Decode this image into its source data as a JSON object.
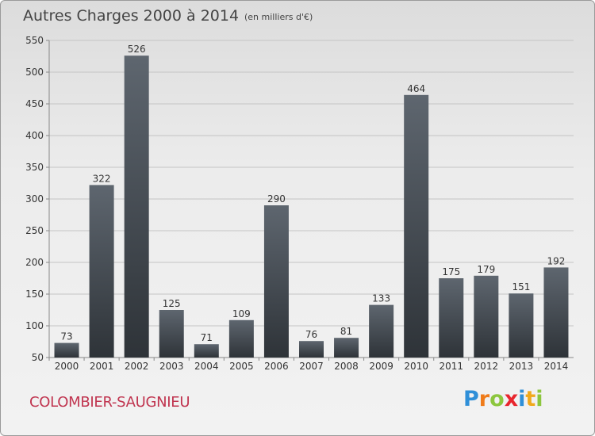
{
  "header": {
    "title": "Autres Charges 2000 à 2014",
    "subtitle": "(en milliers d'€)"
  },
  "footer": {
    "town": "COLOMBIER-SAUGNIEU"
  },
  "logo": {
    "text": "Proxiti",
    "letters": [
      {
        "ch": "P",
        "color": "#2f8fd8"
      },
      {
        "ch": "r",
        "color": "#ef7b1a"
      },
      {
        "ch": "o",
        "color": "#8cc63e"
      },
      {
        "ch": "x",
        "color": "#e8262e"
      },
      {
        "ch": "i",
        "color": "#2f8fd8"
      },
      {
        "ch": "t",
        "color": "#f0a91c"
      },
      {
        "ch": "i",
        "color": "#8cc63e"
      }
    ]
  },
  "colors": {
    "bar_top": "#5e666f",
    "bar_bottom": "#2e3338",
    "axis": "#888888",
    "grid": "#c4c4c4",
    "text": "#333333"
  },
  "chart_data": {
    "type": "bar",
    "categories": [
      "2000",
      "2001",
      "2002",
      "2003",
      "2004",
      "2005",
      "2006",
      "2007",
      "2008",
      "2009",
      "2010",
      "2011",
      "2012",
      "2013",
      "2014"
    ],
    "values": [
      73,
      322,
      526,
      125,
      71,
      109,
      290,
      76,
      81,
      133,
      464,
      175,
      179,
      151,
      192
    ],
    "ylim": [
      50,
      550
    ],
    "yticks": [
      50,
      100,
      150,
      200,
      250,
      300,
      350,
      400,
      450,
      500,
      550
    ],
    "grid": true,
    "data_labels": true
  }
}
